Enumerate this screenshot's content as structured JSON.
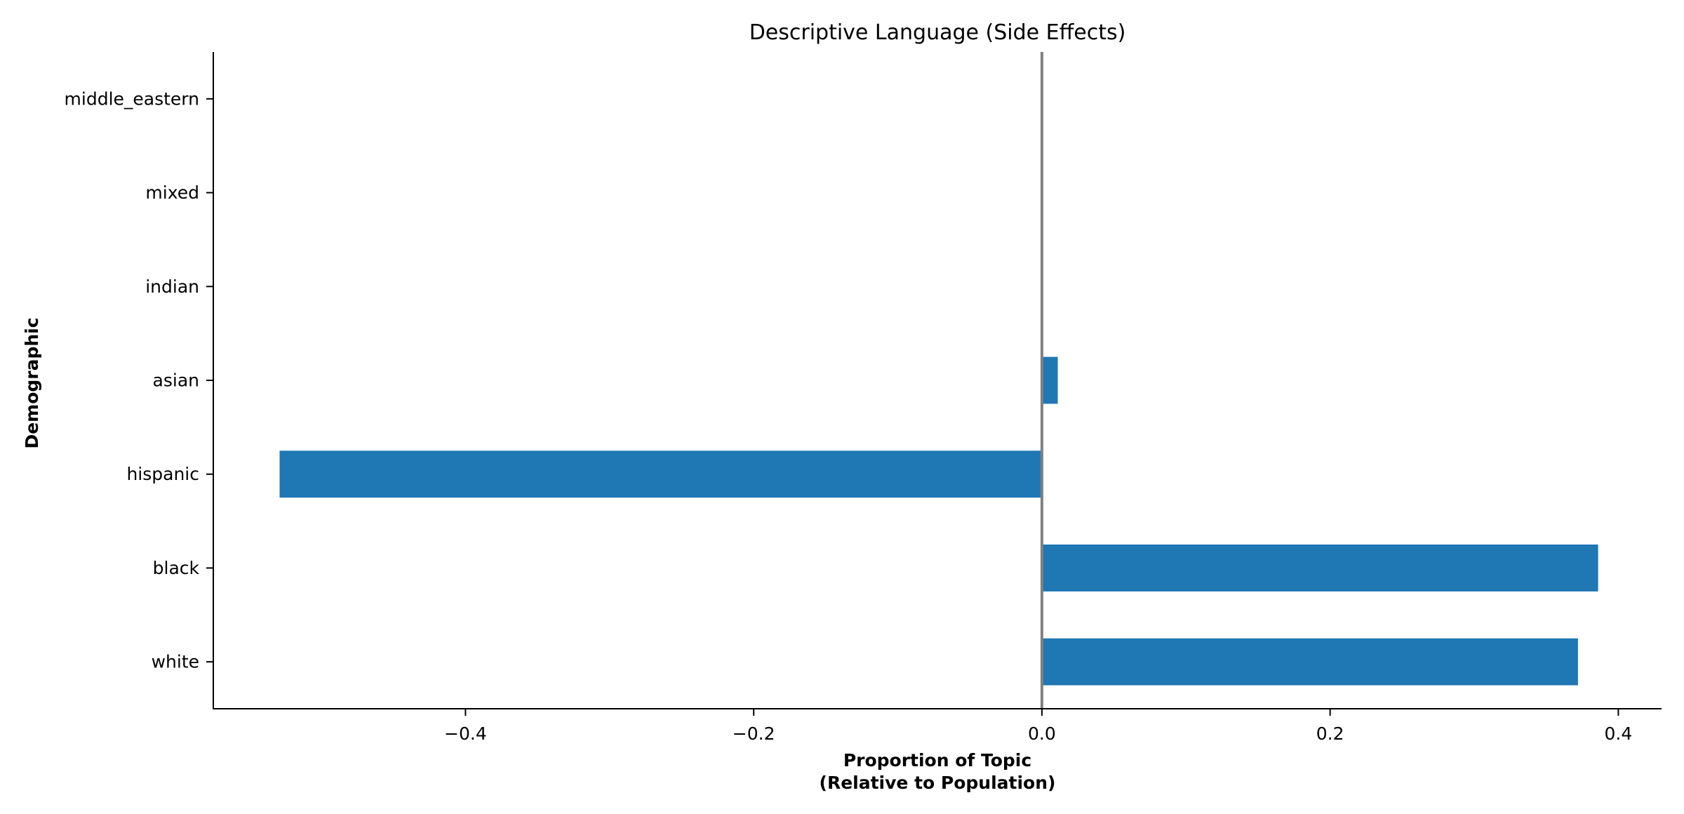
{
  "chart_data": {
    "type": "bar",
    "orientation": "horizontal",
    "title": "Descriptive Language (Side Effects)",
    "xlabel": [
      "Proportion of Topic",
      "(Relative to Population)"
    ],
    "ylabel": "Demographic",
    "categories": [
      "white",
      "black",
      "hispanic",
      "asian",
      "indian",
      "mixed",
      "middle_eastern"
    ],
    "values": [
      0.372,
      0.386,
      -0.529,
      0.011,
      0.0,
      0.0,
      0.0
    ],
    "xlim": [
      -0.575,
      0.43
    ],
    "xticks": [
      -0.4,
      -0.2,
      0.0,
      0.2,
      0.4
    ],
    "xtick_labels": [
      "−0.4",
      "−0.2",
      "0.0",
      "0.2",
      "0.4"
    ],
    "bar_color": "#1f77b4",
    "zero_line_color": "#808080",
    "grid": false,
    "legend": "none"
  }
}
